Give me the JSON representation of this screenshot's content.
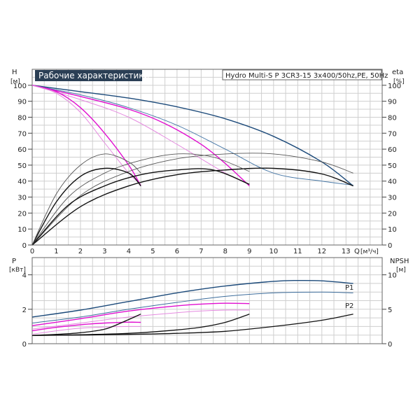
{
  "chart_data": [
    {
      "type": "line",
      "title": "Рабочие характеристики",
      "model": "Hydro Multi-S P 3CR3-15 3x400/50hz,PE, 50Hz",
      "left_axis": {
        "label": "H",
        "unit": "[м]",
        "ticks": [
          0,
          10,
          20,
          30,
          40,
          50,
          60,
          70,
          80,
          90,
          100
        ],
        "ylim": [
          0,
          110
        ]
      },
      "right_axis": {
        "label": "eta",
        "unit": "[%]",
        "ticks": [
          0,
          10,
          20,
          30,
          40,
          50,
          60,
          70,
          80,
          90,
          100
        ],
        "ylim": [
          0,
          110
        ]
      },
      "x_axis": {
        "label": "Q",
        "unit": "[м³/ч]",
        "ticks": [
          0,
          1,
          2,
          3,
          4,
          5,
          6,
          7,
          8,
          9,
          10,
          11,
          12,
          13
        ],
        "xlim": [
          0,
          14.5
        ]
      },
      "grid": true,
      "series": [
        {
          "kind": "head",
          "color": "#1c4a7a",
          "width": 1.4,
          "points": [
            [
              0,
              100
            ],
            [
              2,
              96
            ],
            [
              4,
              92
            ],
            [
              6,
              86.5
            ],
            [
              8,
              79
            ],
            [
              10,
              68
            ],
            [
              12,
              52
            ],
            [
              13.3,
              37
            ]
          ]
        },
        {
          "kind": "head",
          "color": "#4a7aa8",
          "width": 1.0,
          "points": [
            [
              0,
              100
            ],
            [
              2,
              94
            ],
            [
              4,
              86
            ],
            [
              6,
              75
            ],
            [
              8,
              60
            ],
            [
              10,
              45
            ],
            [
              12,
              40
            ],
            [
              13.3,
              37.5
            ]
          ]
        },
        {
          "kind": "head",
          "color": "#e10fd0",
          "width": 1.4,
          "points": [
            [
              0,
              100
            ],
            [
              2,
              93
            ],
            [
              4,
              85
            ],
            [
              5.5,
              76
            ],
            [
              7,
              63
            ],
            [
              8,
              51
            ],
            [
              9,
              37
            ]
          ]
        },
        {
          "kind": "head",
          "color": "#e58be0",
          "width": 1.0,
          "points": [
            [
              0,
              100
            ],
            [
              2,
              91
            ],
            [
              4,
              80
            ],
            [
              6,
              63
            ],
            [
              8,
              45
            ],
            [
              9,
              38
            ]
          ]
        },
        {
          "kind": "head",
          "color": "#e10fd0",
          "width": 1.4,
          "points": [
            [
              0,
              100
            ],
            [
              1,
              96
            ],
            [
              2,
              86
            ],
            [
              3,
              70
            ],
            [
              4,
              50
            ],
            [
              4.5,
              37
            ]
          ]
        },
        {
          "kind": "head",
          "color": "#e58be0",
          "width": 1.0,
          "points": [
            [
              0,
              100
            ],
            [
              1,
              95
            ],
            [
              2,
              83
            ],
            [
              3,
              64
            ],
            [
              4,
              45
            ],
            [
              4.5,
              38
            ]
          ]
        },
        {
          "kind": "eta",
          "color": "#111111",
          "width": 1.4,
          "points": [
            [
              0,
              0
            ],
            [
              2,
              24
            ],
            [
              4,
              37
            ],
            [
              6,
              44
            ],
            [
              8,
              47
            ],
            [
              10,
              48
            ],
            [
              12,
              44.5
            ],
            [
              13.3,
              37
            ]
          ]
        },
        {
          "kind": "eta",
          "color": "#555555",
          "width": 0.9,
          "points": [
            [
              0,
              0
            ],
            [
              2,
              31
            ],
            [
              4,
              46
            ],
            [
              6,
              54
            ],
            [
              8,
              57
            ],
            [
              10,
              57
            ],
            [
              12,
              52
            ],
            [
              13.3,
              45
            ]
          ]
        },
        {
          "kind": "eta",
          "color": "#111111",
          "width": 1.4,
          "points": [
            [
              0,
              0
            ],
            [
              1.5,
              25
            ],
            [
              3,
              37
            ],
            [
              4.5,
              44
            ],
            [
              6,
              47
            ],
            [
              7.5,
              47
            ],
            [
              9,
              38
            ]
          ]
        },
        {
          "kind": "eta",
          "color": "#555555",
          "width": 0.9,
          "points": [
            [
              0,
              0
            ],
            [
              1.5,
              30
            ],
            [
              3,
              45
            ],
            [
              4.5,
              53
            ],
            [
              6,
              57
            ],
            [
              7.5,
              55
            ],
            [
              9,
              46
            ]
          ]
        },
        {
          "kind": "eta",
          "color": "#111111",
          "width": 1.4,
          "points": [
            [
              0,
              0
            ],
            [
              1,
              27
            ],
            [
              2,
              43
            ],
            [
              3,
              48
            ],
            [
              4,
              45
            ],
            [
              4.5,
              37
            ]
          ]
        },
        {
          "kind": "eta",
          "color": "#555555",
          "width": 0.9,
          "points": [
            [
              0,
              0
            ],
            [
              1,
              32
            ],
            [
              2,
              50
            ],
            [
              3,
              57
            ],
            [
              4,
              52
            ],
            [
              4.5,
              45
            ]
          ]
        }
      ]
    },
    {
      "type": "line",
      "left_axis": {
        "label": "P",
        "unit": "[кВт]",
        "ticks": [
          0,
          2,
          4
        ],
        "ylim": [
          0,
          5
        ]
      },
      "right_axis": {
        "label": "NPSH",
        "unit": "[м]",
        "ticks": [
          0,
          5,
          10
        ],
        "ylim": [
          0,
          12.5
        ]
      },
      "x_axis": {
        "xlim": [
          0,
          14.5
        ]
      },
      "grid": true,
      "annotations": [
        "P1",
        "P2"
      ],
      "series": [
        {
          "kind": "P1",
          "color": "#1c4a7a",
          "width": 1.4,
          "points": [
            [
              0,
              1.55
            ],
            [
              2,
              1.95
            ],
            [
              4,
              2.45
            ],
            [
              6,
              2.95
            ],
            [
              8,
              3.35
            ],
            [
              10,
              3.62
            ],
            [
              11,
              3.67
            ],
            [
              12,
              3.65
            ],
            [
              13.3,
              3.5
            ]
          ]
        },
        {
          "kind": "P2",
          "color": "#3d6d9c",
          "width": 1.0,
          "points": [
            [
              0,
              1.2
            ],
            [
              2,
              1.55
            ],
            [
              4,
              2.0
            ],
            [
              6,
              2.4
            ],
            [
              8,
              2.75
            ],
            [
              10,
              2.95
            ],
            [
              12,
              3.0
            ],
            [
              13.3,
              2.95
            ]
          ]
        },
        {
          "kind": "P1",
          "color": "#e10fd0",
          "width": 1.4,
          "points": [
            [
              0,
              1.05
            ],
            [
              2,
              1.45
            ],
            [
              4,
              1.9
            ],
            [
              6,
              2.2
            ],
            [
              7,
              2.3
            ],
            [
              8,
              2.35
            ],
            [
              9,
              2.33
            ]
          ]
        },
        {
          "kind": "P2",
          "color": "#e58be0",
          "width": 1.0,
          "points": [
            [
              0,
              0.85
            ],
            [
              2,
              1.2
            ],
            [
              4,
              1.55
            ],
            [
              6,
              1.8
            ],
            [
              7,
              1.9
            ],
            [
              8,
              1.95
            ],
            [
              9,
              1.95
            ]
          ]
        },
        {
          "kind": "P1",
          "color": "#e10fd0",
          "width": 1.4,
          "points": [
            [
              0,
              0.75
            ],
            [
              1,
              0.95
            ],
            [
              2,
              1.1
            ],
            [
              3,
              1.2
            ],
            [
              4,
              1.25
            ],
            [
              4.5,
              1.24
            ]
          ]
        },
        {
          "kind": "P2",
          "color": "#e58be0",
          "width": 1.0,
          "points": [
            [
              0,
              0.55
            ],
            [
              1,
              0.75
            ],
            [
              2,
              0.9
            ],
            [
              3,
              0.97
            ],
            [
              4,
              1.0
            ],
            [
              4.5,
              1.0
            ]
          ]
        },
        {
          "kind": "npsh",
          "color": "#111111",
          "width": 1.3,
          "points": [
            [
              0,
              1.2
            ],
            [
              2,
              1.25
            ],
            [
              4,
              1.35
            ],
            [
              6,
              1.5
            ],
            [
              8,
              1.8
            ],
            [
              10,
              2.5
            ],
            [
              12,
              3.4
            ],
            [
              13.3,
              4.3
            ]
          ]
        },
        {
          "kind": "npsh",
          "color": "#111111",
          "width": 1.3,
          "points": [
            [
              0,
              1.2
            ],
            [
              2,
              1.3
            ],
            [
              4,
              1.5
            ],
            [
              6,
              2.0
            ],
            [
              7,
              2.4
            ],
            [
              8,
              3.1
            ],
            [
              9,
              4.3
            ]
          ]
        },
        {
          "kind": "npsh",
          "color": "#111111",
          "width": 1.3,
          "points": [
            [
              0,
              1.2
            ],
            [
              1,
              1.35
            ],
            [
              2,
              1.6
            ],
            [
              3,
              2.1
            ],
            [
              3.8,
              3.2
            ],
            [
              4.5,
              4.3
            ]
          ]
        }
      ]
    }
  ]
}
